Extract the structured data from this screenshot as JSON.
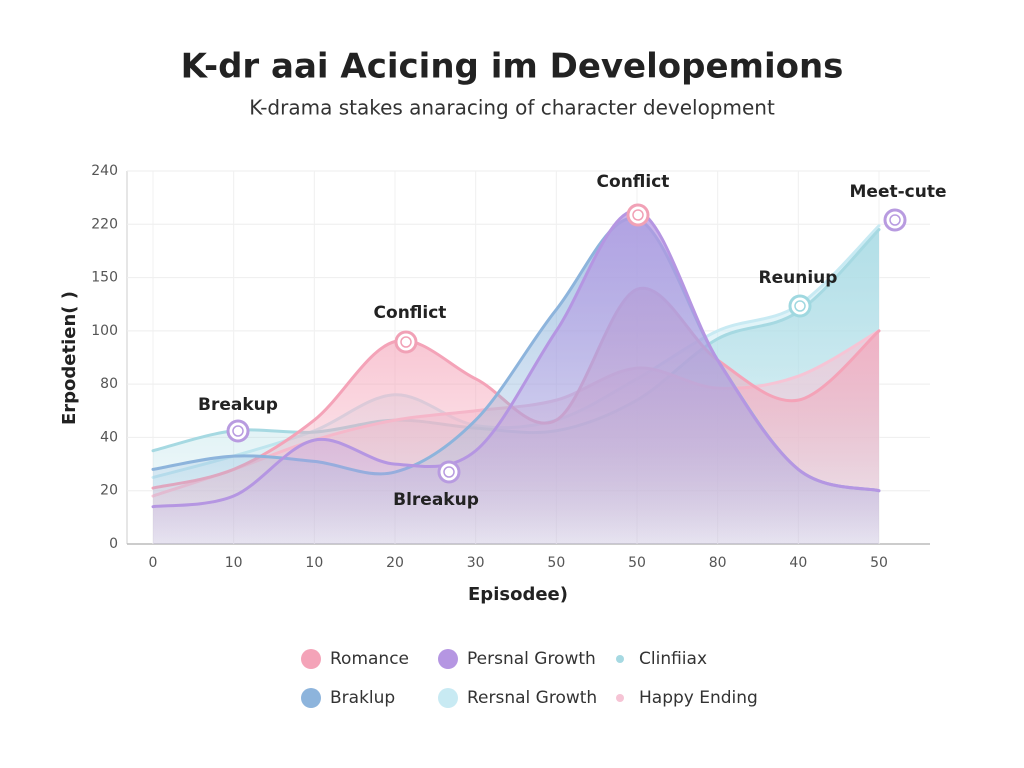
{
  "chart_data": {
    "type": "area-line",
    "title": "K-dr aai Acicing im Developemions",
    "subtitle": "K-drama stakes anaracing of character development",
    "y_label": "Erpodetien( )",
    "x_label": "Episodee)",
    "categories": [
      "0",
      "10",
      "10",
      "20",
      "30",
      "50",
      "50",
      "80",
      "40",
      "50"
    ],
    "ylim": [
      0,
      240
    ],
    "yticks": [
      0,
      20,
      40,
      80,
      100,
      150,
      220,
      240
    ],
    "grid": true,
    "series": [
      {
        "name": "Romance",
        "color": "#f4a3b8",
        "values": [
          21,
          28,
          53,
          96,
          82,
          53,
          139,
          89,
          68,
          100
        ]
      },
      {
        "name": "Persnal Growth",
        "color": "#b596e2",
        "values": [
          14,
          18,
          39,
          30,
          35,
          100,
          225,
          89,
          28,
          20
        ]
      },
      {
        "name": "Clinfiiax",
        "color": "#a6d9e2",
        "values": [
          35,
          45,
          44,
          53,
          47,
          45,
          68,
          97,
          118,
          213
        ]
      },
      {
        "name": "Braklup",
        "color": "#8db4dc",
        "values": [
          28,
          33,
          31,
          27,
          53,
          120,
          222,
          89,
          28,
          20
        ]
      },
      {
        "name": "Rersnal Growth",
        "color": "#c8eaf3",
        "values": [
          25,
          33,
          45,
          72,
          49,
          53,
          82,
          100,
          124,
          218
        ]
      },
      {
        "name": "Happy Ending",
        "color": "#f6c4d5",
        "values": [
          18,
          28,
          39,
          53,
          60,
          68,
          86,
          77,
          83,
          100
        ]
      }
    ],
    "annotations": [
      "Breakup",
      "Conflict",
      "Blreakup",
      "Conflict",
      "Reuniup",
      "Meet-cute"
    ]
  }
}
